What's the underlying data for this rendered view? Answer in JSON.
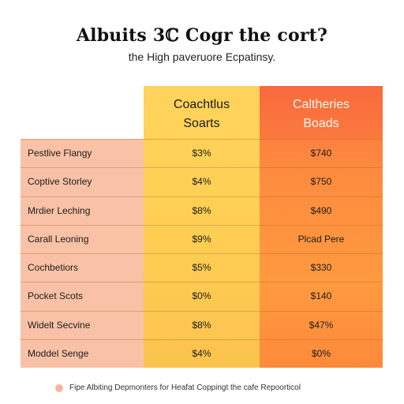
{
  "chart_data": {
    "type": "table",
    "title": "Albuits 3ℂ Cogr the cort?",
    "subtitle": "the High paveruore Ecpatinsy.",
    "columns": [
      "",
      "Coachtlus Soarts",
      "Caltheries Boads"
    ],
    "column_headers": [
      {
        "line1": "Coachtlus",
        "line2": "Soarts"
      },
      {
        "line1": "Caltheries",
        "line2": "Boads"
      }
    ],
    "rows": [
      {
        "label": "Pestlive Flangy",
        "a": "$3%",
        "b": "$740"
      },
      {
        "label": "Coptive Storley",
        "a": "$4%",
        "b": "$750"
      },
      {
        "label": "Mrdier Leching",
        "a": "$8%",
        "b": "$490"
      },
      {
        "label": "Carall Leoning",
        "a": "$9%",
        "b": "Plcad Pere"
      },
      {
        "label": "Cochbetiors",
        "a": "$5%",
        "b": "$330"
      },
      {
        "label": "Pocket Scots",
        "a": "$0%",
        "b": "$140"
      },
      {
        "label": "Widelt Secvine",
        "a": "$8%",
        "b": "$47%"
      },
      {
        "label": "Moddel Senge",
        "a": "$4%",
        "b": "$0%"
      }
    ],
    "legend": {
      "text": "Fipe Albiting Depmonters for Heafat Coppingt the cafe Repoorticol",
      "color": "#f7b59e",
      "placement": "bottom-left"
    },
    "colors": {
      "label_column": "#f9c1a6",
      "column_a": "#fecf54",
      "column_b": "#fd8b3f",
      "column_b_header": "#f86a3e"
    }
  }
}
